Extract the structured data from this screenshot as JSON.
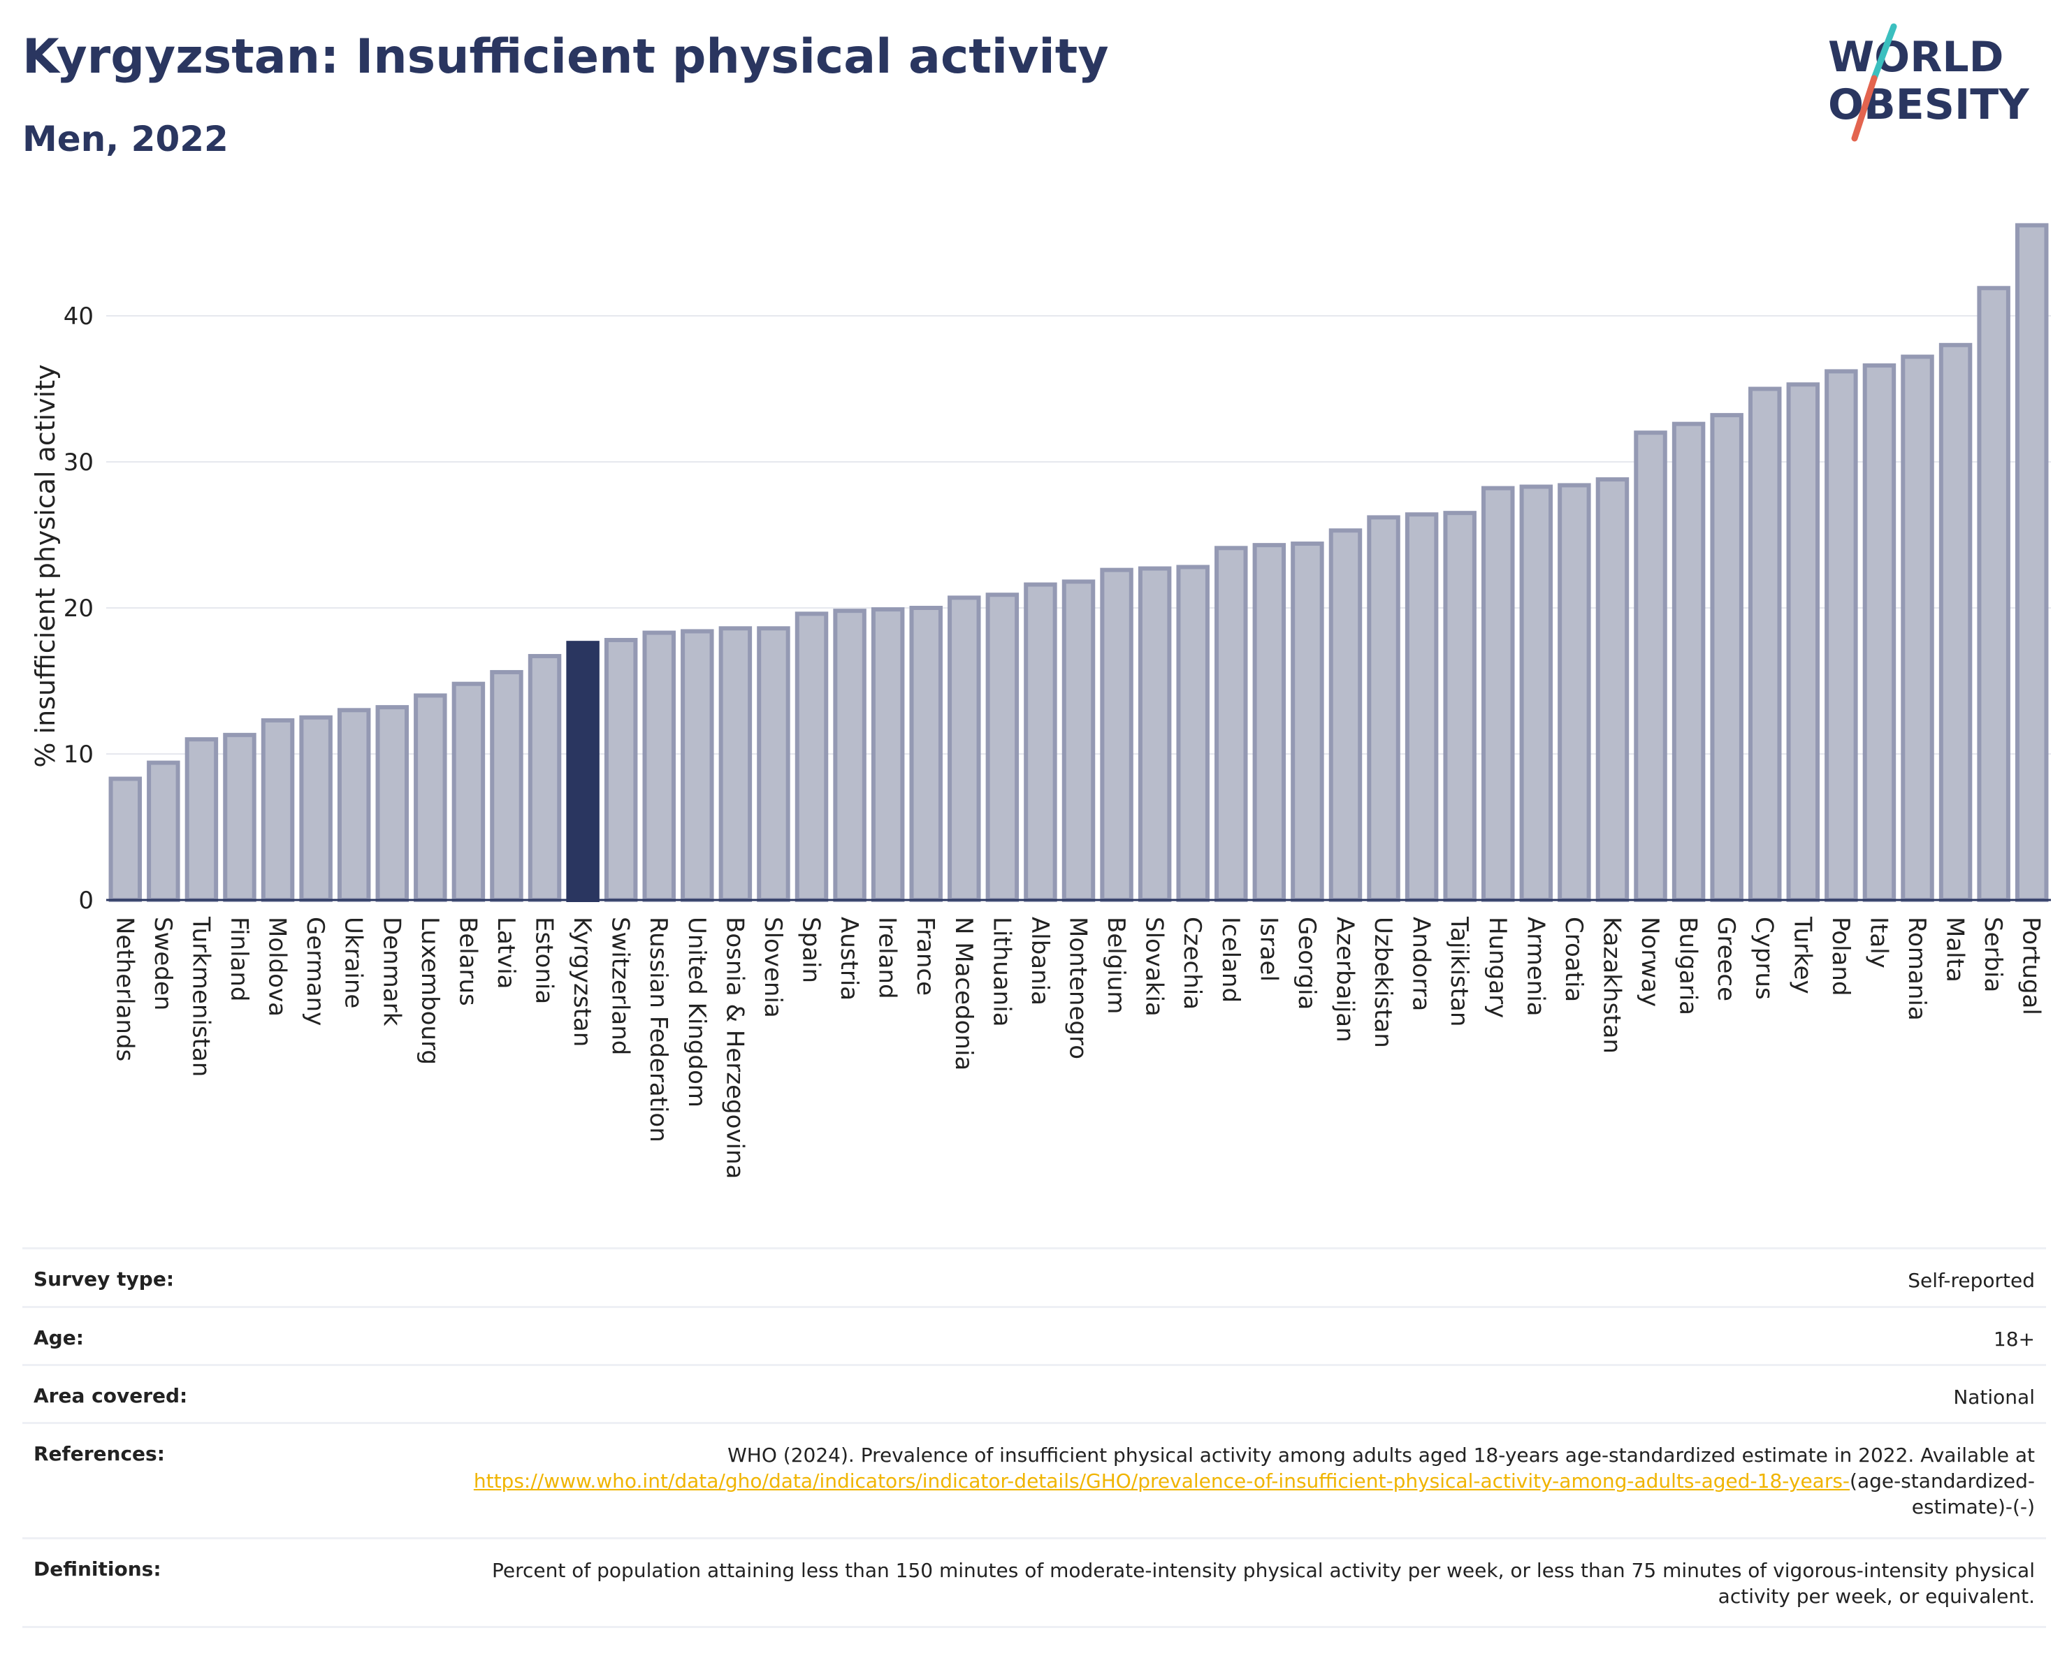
{
  "title": "Kyrgyzstan: Insufficient physical activity",
  "subtitle": "Men, 2022",
  "logo": {
    "line1": "WORLD",
    "line2": "OBESITY",
    "accent_colors": [
      "#3bbfbf",
      "#e3644f"
    ]
  },
  "chart_data": {
    "type": "bar",
    "ylabel": "% insufficient physical activity",
    "ylim": [
      0,
      46.5
    ],
    "yticks": [
      0,
      10,
      20,
      30,
      40
    ],
    "grid": true,
    "highlight": "Kyrgyzstan",
    "colors": {
      "bar": "#b8bccb",
      "bar_border": "#9499b3",
      "highlight": "#2a3660"
    },
    "categories": [
      "Netherlands",
      "Sweden",
      "Turkmenistan",
      "Finland",
      "Moldova",
      "Germany",
      "Ukraine",
      "Denmark",
      "Luxembourg",
      "Belarus",
      "Latvia",
      "Estonia",
      "Kyrgyzstan",
      "Switzerland",
      "Russian Federation",
      "United Kingdom",
      "Bosnia & Herzegovina",
      "Slovenia",
      "Spain",
      "Austria",
      "Ireland",
      "France",
      "N Macedonia",
      "Lithuania",
      "Albania",
      "Montenegro",
      "Belgium",
      "Slovakia",
      "Czechia",
      "Iceland",
      "Israel",
      "Georgia",
      "Azerbaijan",
      "Uzbekistan",
      "Andorra",
      "Tajikistan",
      "Hungary",
      "Armenia",
      "Croatia",
      "Kazakhstan",
      "Norway",
      "Bulgaria",
      "Greece",
      "Cyprus",
      "Turkey",
      "Poland",
      "Italy",
      "Romania",
      "Malta",
      "Serbia",
      "Portugal"
    ],
    "values": [
      8.3,
      9.4,
      11.0,
      11.3,
      12.3,
      12.5,
      13.0,
      13.2,
      14.0,
      14.8,
      15.6,
      16.7,
      17.6,
      17.8,
      18.3,
      18.4,
      18.6,
      18.6,
      19.6,
      19.8,
      19.9,
      20.0,
      20.7,
      20.9,
      21.6,
      21.8,
      22.6,
      22.7,
      22.8,
      24.1,
      24.3,
      24.4,
      25.3,
      26.2,
      26.4,
      26.5,
      28.2,
      28.3,
      28.4,
      28.8,
      32.0,
      32.6,
      33.2,
      35.0,
      35.3,
      36.2,
      36.6,
      37.2,
      38.0,
      41.9,
      46.2
    ]
  },
  "meta": {
    "survey_type": {
      "label": "Survey type:",
      "value": "Self-reported"
    },
    "age": {
      "label": "Age:",
      "value": "18+"
    },
    "area": {
      "label": "Area covered:",
      "value": "National"
    },
    "references": {
      "label": "References:",
      "text": "WHO (2024). Prevalence of insufficient physical activity among adults aged 18-years age-standardized estimate in 2022. Available at",
      "link": "https://www.who.int/data/gho/data/indicators/indicator-details/GHO/prevalence-of-insufficient-physical-activity-among-adults-aged-18-years-",
      "suffix": "(age-standardized-estimate)-(-)"
    },
    "definitions": {
      "label": "Definitions:",
      "value": "Percent of population attaining less than 150 minutes of moderate-intensity physical activity per week, or less than 75 minutes of vigorous-intensity physical activity per week, or equivalent."
    }
  }
}
